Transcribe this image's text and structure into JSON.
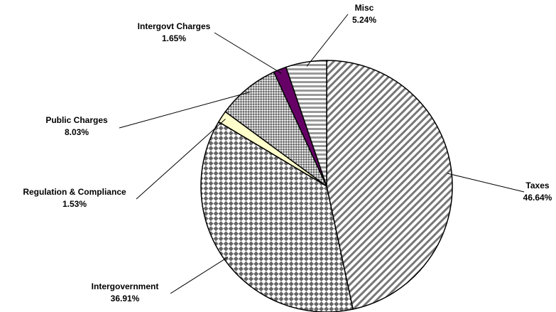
{
  "chart_data": {
    "type": "pie",
    "categories": [
      "Taxes",
      "Intergovernment",
      "Regulation & Compliance",
      "Public Charges",
      "Intergovt Charges",
      "Misc"
    ],
    "values": [
      46.64,
      36.91,
      1.53,
      8.03,
      1.65,
      5.24
    ],
    "value_labels": [
      "46.64%",
      "36.91%",
      "1.53%",
      "8.03%",
      "1.65%",
      "5.24%"
    ],
    "colors": [
      "#808080",
      "#707070",
      "#ffffcc",
      "#909090",
      "#660066",
      "#a0a0a0"
    ]
  }
}
